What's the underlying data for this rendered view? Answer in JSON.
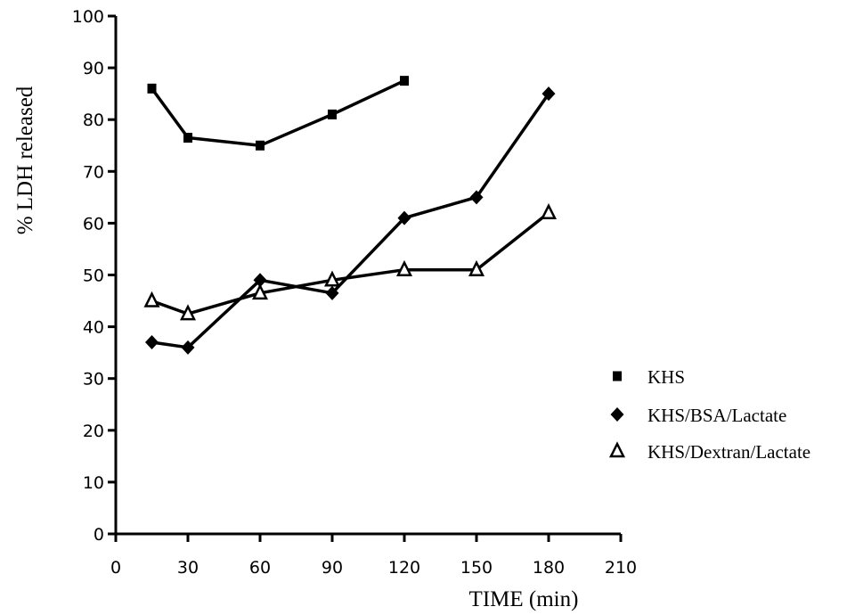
{
  "chart_data": {
    "type": "line",
    "title": "",
    "xlabel": "TIME (min)",
    "ylabel": "% LDH released",
    "xlim": [
      0,
      210
    ],
    "ylim": [
      0,
      100
    ],
    "xticks": [
      0,
      30,
      60,
      90,
      120,
      150,
      180,
      210
    ],
    "yticks": [
      0,
      10,
      20,
      30,
      40,
      50,
      60,
      70,
      80,
      90,
      100
    ],
    "grid": false,
    "legend_position": "right",
    "series": [
      {
        "name": "KHS",
        "marker": "square",
        "x": [
          15,
          30,
          60,
          90,
          120
        ],
        "y": [
          86,
          76.5,
          75,
          81,
          87.5
        ]
      },
      {
        "name": "KHS/BSA/Lactate",
        "marker": "diamond",
        "x": [
          15,
          30,
          60,
          90,
          120,
          150,
          180
        ],
        "y": [
          37,
          36,
          49,
          46.5,
          61,
          65,
          85
        ]
      },
      {
        "name": "KHS/Dextran/Lactate",
        "marker": "triangle-open",
        "x": [
          15,
          30,
          60,
          90,
          120,
          150,
          180
        ],
        "y": [
          45,
          42.5,
          46.5,
          49,
          51,
          51,
          62
        ]
      }
    ]
  }
}
